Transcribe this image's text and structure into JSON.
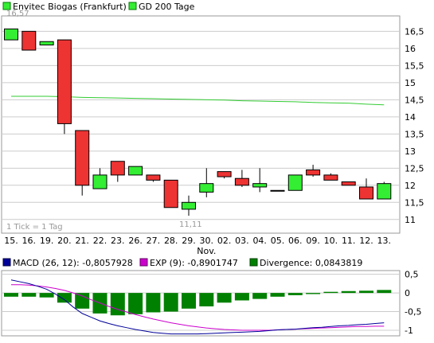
{
  "colors": {
    "up": "#33ee33",
    "down": "#ee3333",
    "ma": "#33cc33",
    "macd": "#000099",
    "signal": "#cc00cc",
    "divergence": "#008000",
    "grid": "#cccccc",
    "frame": "#999999"
  },
  "chart_data": [
    {
      "type": "candlestick",
      "legend": [
        {
          "label": "Envitec Biogas (Frankfurt)",
          "color": "#33ee33"
        },
        {
          "label": "GD 200 Tage",
          "color": "#33ee33"
        }
      ],
      "categories": [
        "15.",
        "16.",
        "19.",
        "20.",
        "21.",
        "22.",
        "23.",
        "26.",
        "27.",
        "28.",
        "29.",
        "30.",
        "02.",
        "03.",
        "04.",
        "05.",
        "06.",
        "09.",
        "10.",
        "11.",
        "12.",
        "13."
      ],
      "month_label": "Nov.",
      "month_label_index": 11,
      "ylim": [
        10.6,
        16.95
      ],
      "yticks": [
        11,
        11.5,
        12,
        12.5,
        13,
        13.5,
        14,
        14.5,
        15,
        15.5,
        16,
        16.5
      ],
      "ytick_labels": [
        "11",
        "11,5",
        "12",
        "12,5",
        "13",
        "13,5",
        "14",
        "14,5",
        "15",
        "15,5",
        "16",
        "16,5"
      ],
      "ohlc": [
        {
          "o": 16.25,
          "h": 16.57,
          "l": 16.25,
          "c": 16.57
        },
        {
          "o": 16.5,
          "h": 16.5,
          "l": 15.95,
          "c": 15.95
        },
        {
          "o": 16.1,
          "h": 16.2,
          "l": 16.1,
          "c": 16.2
        },
        {
          "o": 16.25,
          "h": 16.25,
          "l": 13.5,
          "c": 13.8
        },
        {
          "o": 13.6,
          "h": 13.6,
          "l": 11.7,
          "c": 12.0
        },
        {
          "o": 11.9,
          "h": 12.5,
          "l": 11.9,
          "c": 12.3
        },
        {
          "o": 12.7,
          "h": 12.7,
          "l": 12.1,
          "c": 12.3
        },
        {
          "o": 12.3,
          "h": 12.55,
          "l": 12.3,
          "c": 12.55
        },
        {
          "o": 12.3,
          "h": 12.3,
          "l": 12.1,
          "c": 12.15
        },
        {
          "o": 12.15,
          "h": 12.15,
          "l": 11.35,
          "c": 11.35
        },
        {
          "o": 11.3,
          "h": 11.7,
          "l": 11.11,
          "c": 11.5
        },
        {
          "o": 11.8,
          "h": 12.5,
          "l": 11.65,
          "c": 12.05
        },
        {
          "o": 12.4,
          "h": 12.4,
          "l": 12.2,
          "c": 12.25
        },
        {
          "o": 12.2,
          "h": 12.45,
          "l": 11.95,
          "c": 12.0
        },
        {
          "o": 11.95,
          "h": 12.5,
          "l": 11.8,
          "c": 12.05
        },
        {
          "o": 11.85,
          "h": 11.85,
          "l": 11.85,
          "c": 11.85
        },
        {
          "o": 11.85,
          "h": 12.3,
          "l": 11.85,
          "c": 12.3
        },
        {
          "o": 12.45,
          "h": 12.6,
          "l": 12.25,
          "c": 12.3
        },
        {
          "o": 12.3,
          "h": 12.35,
          "l": 12.15,
          "c": 12.15
        },
        {
          "o": 12.1,
          "h": 12.1,
          "l": 12.0,
          "c": 12.0
        },
        {
          "o": 11.95,
          "h": 12.2,
          "l": 11.6,
          "c": 11.6
        },
        {
          "o": 11.6,
          "h": 12.1,
          "l": 11.6,
          "c": 12.05
        }
      ],
      "ma200": [
        14.6,
        14.6,
        14.6,
        14.59,
        14.57,
        14.56,
        14.55,
        14.54,
        14.53,
        14.52,
        14.51,
        14.5,
        14.49,
        14.47,
        14.46,
        14.45,
        14.44,
        14.42,
        14.41,
        14.4,
        14.37,
        14.35
      ],
      "max_label": "16,57",
      "min_label": "11,11",
      "tick_note": "1 Tick = 1 Tag"
    },
    {
      "type": "line+bar",
      "legend": [
        {
          "label": "MACD (26, 12): -0,8057928",
          "color": "#000099"
        },
        {
          "label": "EXP (9): -0,8901747",
          "color": "#cc00cc"
        },
        {
          "label": "Divergence: 0,0843819",
          "color": "#008000"
        }
      ],
      "ylim": [
        -1.15,
        0.6
      ],
      "yticks": [
        0.5,
        0,
        -0.5,
        -1
      ],
      "ytick_labels": [
        "0,5",
        "0",
        "-0,5",
        "-1"
      ],
      "x": [
        0,
        0.5,
        1,
        1.5,
        2,
        2.5,
        3,
        3.5,
        4,
        4.5,
        5,
        5.5,
        6,
        6.5,
        7,
        7.5,
        8,
        8.5,
        9,
        9.5,
        10,
        10.5,
        11,
        11.5,
        12,
        12.5,
        13,
        13.5,
        14,
        14.5,
        15,
        15.5,
        16,
        16.5,
        17,
        17.5,
        18,
        18.5,
        19,
        19.5,
        20,
        20.5,
        21
      ],
      "macd": [
        0.35,
        0.3,
        0.25,
        0.18,
        0.1,
        -0.03,
        -0.18,
        -0.38,
        -0.55,
        -0.65,
        -0.75,
        -0.82,
        -0.88,
        -0.93,
        -0.98,
        -1.02,
        -1.06,
        -1.08,
        -1.1,
        -1.1,
        -1.1,
        -1.1,
        -1.09,
        -1.08,
        -1.07,
        -1.06,
        -1.05,
        -1.04,
        -1.03,
        -1.01,
        -0.99,
        -0.98,
        -0.97,
        -0.95,
        -0.93,
        -0.92,
        -0.9,
        -0.88,
        -0.87,
        -0.85,
        -0.84,
        -0.82,
        -0.8
      ],
      "signal": [
        0.22,
        0.22,
        0.21,
        0.19,
        0.16,
        0.12,
        0.07,
        0.0,
        -0.08,
        -0.18,
        -0.27,
        -0.36,
        -0.44,
        -0.51,
        -0.58,
        -0.64,
        -0.7,
        -0.75,
        -0.8,
        -0.84,
        -0.88,
        -0.91,
        -0.94,
        -0.96,
        -0.98,
        -0.99,
        -1.0,
        -1.0,
        -1.0,
        -1.0,
        -0.99,
        -0.98,
        -0.97,
        -0.96,
        -0.95,
        -0.94,
        -0.93,
        -0.92,
        -0.91,
        -0.9,
        -0.9,
        -0.89,
        -0.89
      ],
      "divergence_x": [
        0,
        1,
        2,
        3,
        4,
        5,
        6,
        7,
        8,
        9,
        10,
        11,
        12,
        13,
        14,
        15,
        16,
        17,
        18,
        19,
        20,
        21
      ],
      "divergence": [
        -0.1,
        -0.1,
        -0.12,
        -0.26,
        -0.42,
        -0.55,
        -0.6,
        -0.57,
        -0.52,
        -0.5,
        -0.42,
        -0.36,
        -0.26,
        -0.2,
        -0.16,
        -0.1,
        -0.06,
        -0.03,
        0.03,
        0.05,
        0.06,
        0.08
      ]
    }
  ]
}
